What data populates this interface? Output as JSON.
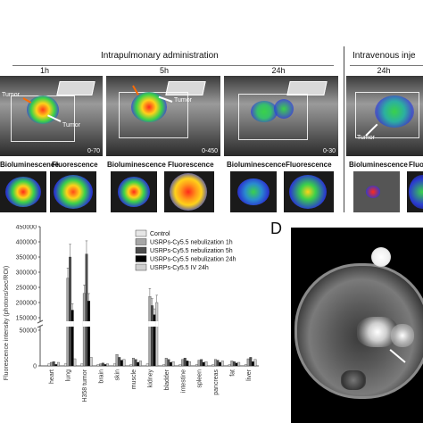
{
  "headers": {
    "intrapulmonary": "Intrapulmonary administration",
    "intravenous": "Intravenous inje"
  },
  "times": [
    "1h",
    "5h",
    "24h",
    "24h"
  ],
  "imaging_labels": {
    "tumor": "Tumor",
    "bioluminescence": "Bioluminescence",
    "fluorescence": "Fluorescence",
    "fluorescence_cut": "Fluoresce"
  },
  "ranges": [
    "0-70",
    "0-450",
    "0-30"
  ],
  "panel_letter_d": "D",
  "colors": {
    "control": "#e6e6e6",
    "neb_1h": "#a6a6a6",
    "neb_5h": "#4d4d4d",
    "neb_24h": "#000000",
    "iv_24h": "#cfcfcf"
  },
  "chart_data": {
    "type": "bar",
    "ylabel": "Fluorescence intensity (photons/sec/ROI)",
    "y_ticks": [
      "0",
      "50000",
      "150000",
      "200000",
      "250000",
      "300000",
      "350000",
      "400000",
      "450000"
    ],
    "y_axis_break": [
      50000,
      150000
    ],
    "categories": [
      "heart",
      "lung",
      "H358 tumor",
      "brain",
      "skin",
      "muscle",
      "kidney",
      "bladder",
      "intestine",
      "spleen",
      "pancreas",
      "fat",
      "liver"
    ],
    "series": [
      {
        "name": "Control",
        "values": [
          3000,
          3000,
          3000,
          2000,
          3000,
          2000,
          3000,
          2000,
          2000,
          2000,
          2000,
          2000,
          2000
        ]
      },
      {
        "name": "USRPs-Cy5.5 nebulization  1h",
        "values": [
          5000,
          280000,
          230000,
          3000,
          16000,
          11000,
          220000,
          11000,
          9000,
          8000,
          9000,
          7000,
          10000
        ]
      },
      {
        "name": "USRPs-Cy5.5 nebulization  5h",
        "values": [
          6000,
          350000,
          360000,
          4000,
          12000,
          9000,
          190000,
          9000,
          11000,
          9000,
          8000,
          6000,
          12000
        ]
      },
      {
        "name": "USRPs-Cy5.5 nebulization  24h",
        "values": [
          2000,
          175000,
          205000,
          2000,
          8000,
          5000,
          160000,
          5000,
          7000,
          5000,
          5000,
          4000,
          6000
        ]
      },
      {
        "name": "USRPs-Cy5.5 IV 24h",
        "values": [
          5000,
          10000,
          12000,
          3000,
          9000,
          7000,
          200000,
          6000,
          6000,
          6000,
          7000,
          5000,
          9000
        ]
      }
    ],
    "grid": false,
    "legend": "top-right"
  }
}
